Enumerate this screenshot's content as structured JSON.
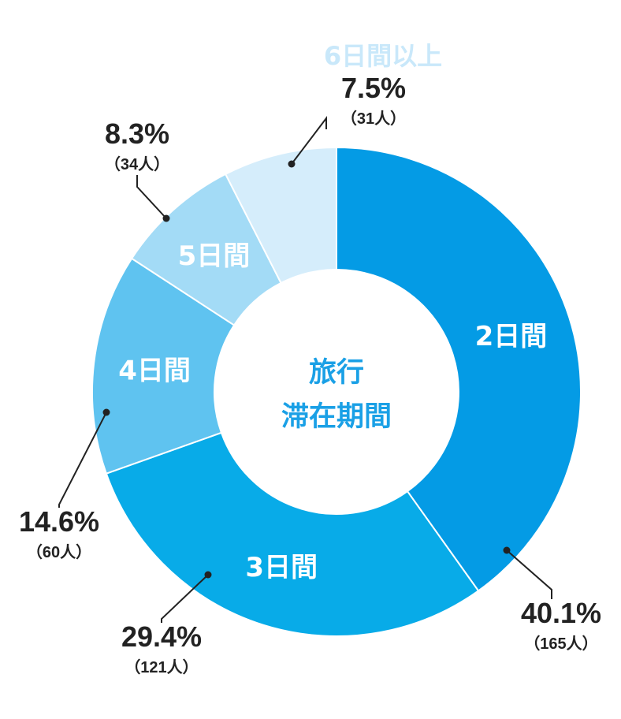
{
  "chart_data": {
    "type": "pie",
    "title": "旅行\n滞在期間",
    "title_lines": [
      "旅行",
      "滞在期間"
    ],
    "title_color": "#1aa0e6",
    "slices": [
      {
        "label": "2日間",
        "percent_text": "40.1%",
        "count_text": "（165人）",
        "value": 40.1,
        "count": 165,
        "color": "#049be5",
        "label_color": "#ffffff"
      },
      {
        "label": "3日間",
        "percent_text": "29.4%",
        "count_text": "（121人）",
        "value": 29.4,
        "count": 121,
        "color": "#08abe8",
        "label_color": "#ffffff"
      },
      {
        "label": "4日間",
        "percent_text": "14.6%",
        "count_text": "（60人）",
        "value": 14.6,
        "count": 60,
        "color": "#5fc3f0",
        "label_color": "#ffffff"
      },
      {
        "label": "5日間",
        "percent_text": "8.3%",
        "count_text": "（34人）",
        "value": 8.3,
        "count": 34,
        "color": "#a3dbf6",
        "label_color": "#ffffff"
      },
      {
        "label": "6日間以上",
        "percent_text": "7.5%",
        "count_text": "（31人）",
        "value": 7.5,
        "count": 31,
        "color": "#d5edfb",
        "label_color": "#c9e8fa"
      }
    ]
  }
}
